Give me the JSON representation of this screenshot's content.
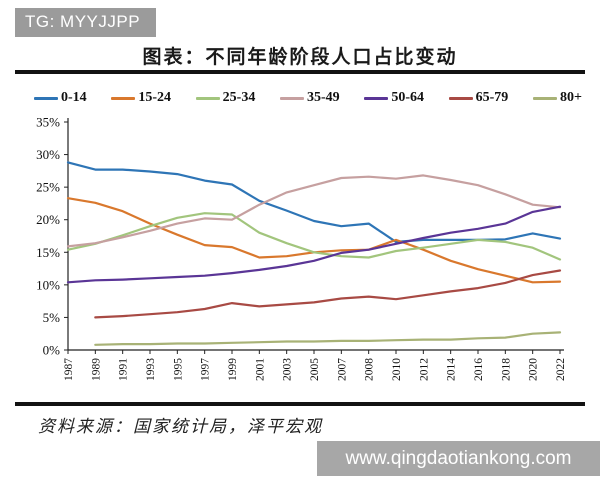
{
  "header": {
    "badge": "TG: MYYJJPP",
    "badge_bg": "#9b9b9b",
    "title": "图表：不同年龄阶段人口占比变动"
  },
  "footer": {
    "source": "资料来源：国家统计局，泽平宏观",
    "watermark": "www.qingdaotiankong.com",
    "watermark_bg": "#a7a7a7"
  },
  "chart_data": {
    "type": "line",
    "title": "图表：不同年龄阶段人口占比变动",
    "xlabel": "",
    "ylabel": "",
    "ylim": [
      0,
      35
    ],
    "grid": false,
    "legend_position": "top",
    "y_ticks": [
      "35%",
      "30%",
      "25%",
      "20%",
      "15%",
      "10%",
      "5%",
      "0%"
    ],
    "x_labels": [
      "1987",
      "1989",
      "1991",
      "1993",
      "1995",
      "1997",
      "1999",
      "2001",
      "2003",
      "2005",
      "2007",
      "2008",
      "2010",
      "2012",
      "2014",
      "2016",
      "2018",
      "2020",
      "2022"
    ],
    "series": [
      {
        "name": "0-14",
        "color": "#2e75b6",
        "values": [
          28.8,
          27.7,
          27.7,
          27.4,
          27.0,
          26.0,
          25.4,
          22.9,
          21.4,
          19.8,
          19.0,
          19.4,
          16.6,
          16.9,
          16.9,
          16.9,
          17.0,
          17.9,
          17.1
        ]
      },
      {
        "name": "15-24",
        "color": "#d9782d",
        "values": [
          23.3,
          22.6,
          21.3,
          19.4,
          17.7,
          16.1,
          15.8,
          14.2,
          14.4,
          15.0,
          15.3,
          15.4,
          16.9,
          15.4,
          13.7,
          12.4,
          11.4,
          10.4,
          10.5
        ]
      },
      {
        "name": "25-34",
        "color": "#a2c57d",
        "values": [
          15.4,
          16.3,
          17.6,
          19.0,
          20.3,
          21.0,
          20.8,
          18.0,
          16.4,
          15.0,
          14.4,
          14.2,
          15.2,
          15.7,
          16.3,
          16.9,
          16.6,
          15.7,
          13.9
        ]
      },
      {
        "name": "35-49",
        "color": "#c6a0a0",
        "values": [
          15.9,
          16.4,
          17.3,
          18.3,
          19.4,
          20.2,
          20.0,
          22.3,
          24.2,
          25.3,
          26.4,
          26.6,
          26.3,
          26.8,
          26.1,
          25.3,
          23.9,
          22.3,
          21.9
        ]
      },
      {
        "name": "50-64",
        "color": "#5a3596",
        "values": [
          10.4,
          10.7,
          10.8,
          11.0,
          11.2,
          11.4,
          11.8,
          12.3,
          12.9,
          13.7,
          14.9,
          15.4,
          16.3,
          17.2,
          18.0,
          18.6,
          19.4,
          21.2,
          22.0
        ]
      },
      {
        "name": "65-79",
        "color": "#a84a44",
        "values": [
          null,
          5.0,
          5.2,
          5.5,
          5.8,
          6.3,
          7.2,
          6.7,
          7.0,
          7.3,
          7.9,
          8.2,
          7.8,
          8.4,
          9.0,
          9.5,
          10.3,
          11.5,
          12.2
        ]
      },
      {
        "name": "80+",
        "color": "#a8b276",
        "values": [
          null,
          0.8,
          0.9,
          0.9,
          1.0,
          1.0,
          1.1,
          1.2,
          1.3,
          1.3,
          1.4,
          1.4,
          1.5,
          1.6,
          1.6,
          1.8,
          1.9,
          2.5,
          2.7
        ]
      }
    ]
  }
}
